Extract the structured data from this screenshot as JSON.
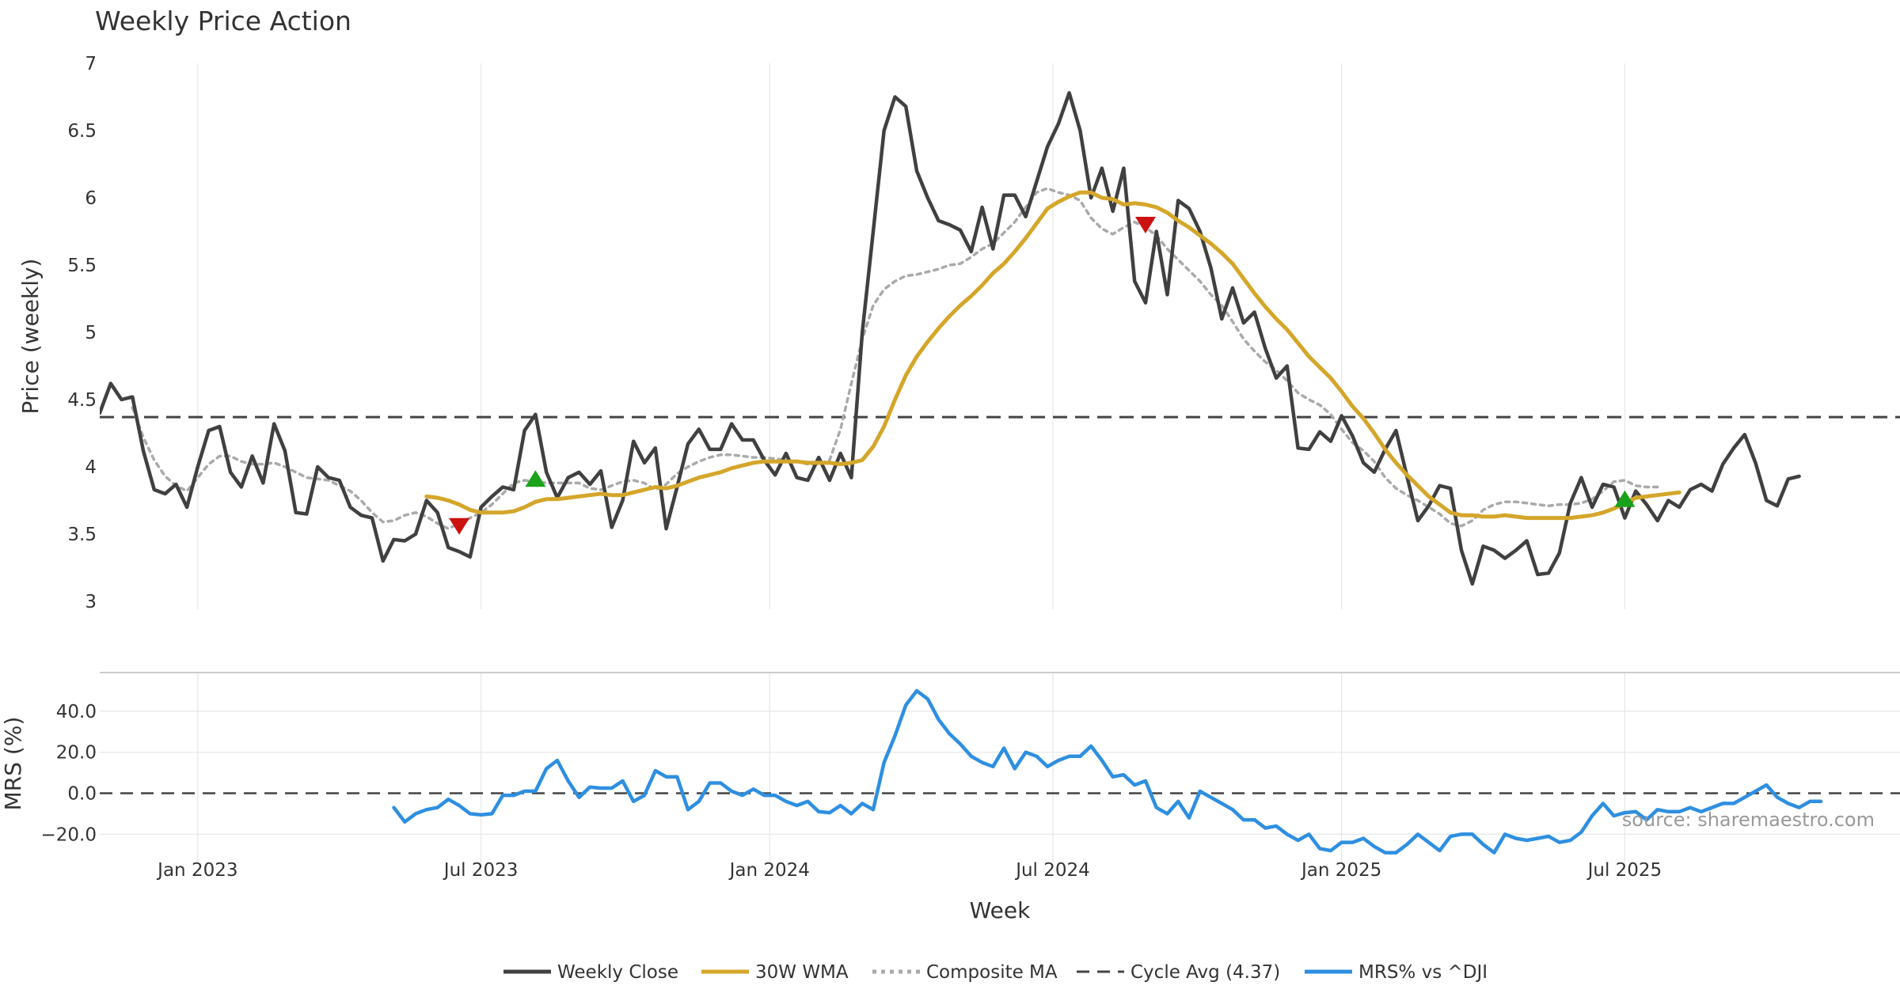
{
  "title": "Weekly Price Action",
  "source": "source: sharemaestro.com",
  "colors": {
    "close": "#404040",
    "wma": "#d4a62a",
    "composite": "#aaaaaa",
    "cycle": "#444444",
    "mrs": "#2e8fe0",
    "buy": "#1aa31a",
    "sell": "#cc1111",
    "grid": "#e6e6e6"
  },
  "chart_data": [
    {
      "type": "line",
      "title": "Weekly Price Action",
      "ylabel": "Price (weekly)",
      "ylim": [
        3,
        7
      ],
      "yticks": [
        3,
        3.5,
        4,
        4.5,
        5,
        5.5,
        6,
        6.5,
        7
      ],
      "cycle_avg": 4.37,
      "series": [
        {
          "name": "Weekly Close",
          "values": [
            4.4,
            4.62,
            4.5,
            4.52,
            4.12,
            3.83,
            3.8,
            3.87,
            3.7,
            4.0,
            4.27,
            4.3,
            3.96,
            3.85,
            4.08,
            3.88,
            4.32,
            4.12,
            3.66,
            3.65,
            4.0,
            3.92,
            3.9,
            3.7,
            3.64,
            3.62,
            3.3,
            3.46,
            3.45,
            3.5,
            3.75,
            3.66,
            3.4,
            3.37,
            3.33,
            3.7,
            3.78,
            3.85,
            3.83,
            4.27,
            4.39,
            3.96,
            3.77,
            3.92,
            3.96,
            3.87,
            3.97,
            3.55,
            3.75,
            4.19,
            4.03,
            4.14,
            3.54,
            3.85,
            4.17,
            4.28,
            4.13,
            4.13,
            4.32,
            4.2,
            4.2,
            4.05,
            3.94,
            4.1,
            3.92,
            3.9,
            4.07,
            3.9,
            4.1,
            3.92,
            5.0,
            5.75,
            6.5,
            6.75,
            6.68,
            6.2,
            6.0,
            5.83,
            5.8,
            5.76,
            5.6,
            5.93,
            5.62,
            6.02,
            6.02,
            5.86,
            6.12,
            6.38,
            6.55,
            6.78,
            6.5,
            6.0,
            6.22,
            5.9,
            6.22,
            5.38,
            5.22,
            5.75,
            5.28,
            5.98,
            5.92,
            5.75,
            5.48,
            5.1,
            5.33,
            5.07,
            5.15,
            4.88,
            4.66,
            4.75,
            4.14,
            4.13,
            4.26,
            4.19,
            4.38,
            4.23,
            4.03,
            3.96,
            4.13,
            4.27,
            3.93,
            3.6,
            3.71,
            3.86,
            3.84,
            3.38,
            3.13,
            3.41,
            3.38,
            3.32,
            3.38,
            3.45,
            3.2,
            3.21,
            3.36,
            3.73,
            3.92,
            3.7,
            3.87,
            3.85,
            3.62,
            3.82,
            3.72,
            3.6,
            3.75,
            3.7,
            3.83,
            3.87,
            3.82,
            4.02,
            4.14,
            4.24,
            4.03,
            3.75,
            3.71,
            3.91,
            3.93
          ]
        },
        {
          "name": "30W WMA",
          "start_index": 30,
          "values": [
            3.78,
            3.77,
            3.75,
            3.72,
            3.68,
            3.66,
            3.66,
            3.66,
            3.67,
            3.7,
            3.74,
            3.76,
            3.76,
            3.77,
            3.78,
            3.79,
            3.8,
            3.79,
            3.79,
            3.81,
            3.83,
            3.85,
            3.84,
            3.86,
            3.89,
            3.92,
            3.94,
            3.96,
            3.99,
            4.01,
            4.03,
            4.04,
            4.04,
            4.04,
            4.04,
            4.03,
            4.03,
            4.03,
            4.02,
            4.03,
            4.05,
            4.15,
            4.3,
            4.5,
            4.68,
            4.82,
            4.93,
            5.03,
            5.12,
            5.2,
            5.27,
            5.35,
            5.44,
            5.51,
            5.6,
            5.7,
            5.81,
            5.92,
            5.97,
            6.01,
            6.04,
            6.04,
            6.0,
            5.99,
            5.95,
            5.96,
            5.95,
            5.93,
            5.89,
            5.83,
            5.78,
            5.72,
            5.66,
            5.59,
            5.51,
            5.4,
            5.29,
            5.19,
            5.1,
            5.02,
            4.92,
            4.82,
            4.74,
            4.66,
            4.56,
            4.45,
            4.36,
            4.25,
            4.13,
            4.03,
            3.94,
            3.86,
            3.78,
            3.72,
            3.66,
            3.64,
            3.64,
            3.63,
            3.63,
            3.64,
            3.63,
            3.62,
            3.62,
            3.62,
            3.62,
            3.62,
            3.63,
            3.64,
            3.66,
            3.69,
            3.73,
            3.77,
            3.78,
            3.79,
            3.8,
            3.81
          ]
        },
        {
          "name": "Composite MA",
          "start_index": 3,
          "values": [
            4.44,
            4.22,
            4.05,
            3.93,
            3.86,
            3.82,
            3.92,
            4.02,
            4.08,
            4.08,
            4.04,
            4.02,
            4.02,
            4.03,
            4.0,
            3.96,
            3.92,
            3.91,
            3.9,
            3.86,
            3.82,
            3.75,
            3.66,
            3.59,
            3.6,
            3.64,
            3.66,
            3.63,
            3.58,
            3.54,
            3.58,
            3.62,
            3.66,
            3.72,
            3.8,
            3.88,
            3.9,
            3.89,
            3.88,
            3.88,
            3.88,
            3.88,
            3.84,
            3.83,
            3.86,
            3.89,
            3.9,
            3.88,
            3.83,
            3.87,
            3.95,
            4.0,
            4.04,
            4.07,
            4.09,
            4.09,
            4.08,
            4.07,
            4.07,
            4.06,
            4.05,
            4.04,
            4.02,
            4.02,
            4.05,
            4.28,
            4.62,
            4.95,
            5.2,
            5.32,
            5.38,
            5.42,
            5.43,
            5.45,
            5.47,
            5.5,
            5.51,
            5.56,
            5.62,
            5.66,
            5.74,
            5.82,
            5.93,
            6.04,
            6.07,
            6.04,
            6.02,
            5.98,
            5.85,
            5.77,
            5.73,
            5.78,
            5.82,
            5.78,
            5.72,
            5.62,
            5.54,
            5.46,
            5.38,
            5.28,
            5.2,
            5.08,
            4.95,
            4.86,
            4.78,
            4.72,
            4.64,
            4.55,
            4.5,
            4.46,
            4.39,
            4.28,
            4.18,
            4.12,
            4.04,
            3.92,
            3.84,
            3.79,
            3.75,
            3.7,
            3.65,
            3.58,
            3.56,
            3.6,
            3.68,
            3.72,
            3.74,
            3.74,
            3.73,
            3.72,
            3.71,
            3.72,
            3.72,
            3.73,
            3.76,
            3.82,
            3.89,
            3.9,
            3.86,
            3.85,
            3.85
          ]
        }
      ]
    },
    {
      "type": "line",
      "ylabel": "MRS (%)",
      "ylim": [
        -28,
        55
      ],
      "yticks": [
        -20,
        0,
        20,
        40
      ],
      "ytick_labels": [
        "−20.0",
        "0.0",
        "20.0",
        "40.0"
      ],
      "series": [
        {
          "name": "MRS% vs ^DJI",
          "start_index": 27,
          "values": [
            -7,
            -14,
            -10,
            -8,
            -7,
            -3,
            -6,
            -10,
            -10.5,
            -10,
            -1,
            -1,
            1,
            1,
            12,
            16,
            6,
            -2,
            3,
            2.5,
            2.5,
            6,
            -4,
            -1,
            11,
            8,
            8,
            -8,
            -4,
            5,
            5,
            1,
            -1,
            2,
            -1,
            -1,
            -4,
            -6,
            -4,
            -9,
            -9.5,
            -6,
            -10,
            -5,
            -8,
            15,
            28,
            43,
            50,
            46,
            36,
            29,
            24,
            18,
            15,
            13,
            22,
            12,
            20,
            18,
            13,
            16,
            18,
            18,
            23,
            16,
            8,
            9,
            4,
            6,
            -7,
            -10,
            -4,
            -12,
            1,
            -2,
            -5,
            -8,
            -13,
            -13,
            -17,
            -16,
            -20,
            -23,
            -20,
            -27,
            -28,
            -24,
            -24,
            -22,
            -26,
            -29,
            -29,
            -25,
            -20,
            -24,
            -28,
            -21,
            -20,
            -20,
            -25,
            -29,
            -20,
            -22,
            -23,
            -22,
            -21,
            -24,
            -23,
            -19,
            -11,
            -5,
            -11,
            -9.5,
            -9,
            -13,
            -8,
            -9,
            -9,
            -7,
            -9,
            -7,
            -5,
            -5,
            -2,
            1,
            4,
            -2,
            -5,
            -7,
            -4,
            -4
          ]
        }
      ]
    }
  ],
  "x_axis": {
    "label": "Week",
    "ticks": [
      {
        "label": "Jan 2023",
        "index": 9
      },
      {
        "label": "Jul 2023",
        "index": 35
      },
      {
        "label": "Jan 2024",
        "index": 61.5
      },
      {
        "label": "Jul 2024",
        "index": 87.5
      },
      {
        "label": "Jan 2025",
        "index": 114
      },
      {
        "label": "Jul 2025",
        "index": 140
      }
    ]
  },
  "signals": [
    {
      "type": "sell",
      "index": 33,
      "value": 3.56
    },
    {
      "type": "buy",
      "index": 40,
      "value": 3.91
    },
    {
      "type": "sell",
      "index": 96,
      "value": 5.8
    },
    {
      "type": "buy",
      "index": 140,
      "value": 3.76
    }
  ],
  "legend": [
    {
      "label": "Weekly Close",
      "style": "close"
    },
    {
      "label": "30W WMA",
      "style": "wma"
    },
    {
      "label": "Composite MA",
      "style": "composite"
    },
    {
      "label": "Cycle Avg (4.37)",
      "style": "cycle"
    },
    {
      "label": "MRS% vs ^DJI",
      "style": "mrs"
    }
  ]
}
